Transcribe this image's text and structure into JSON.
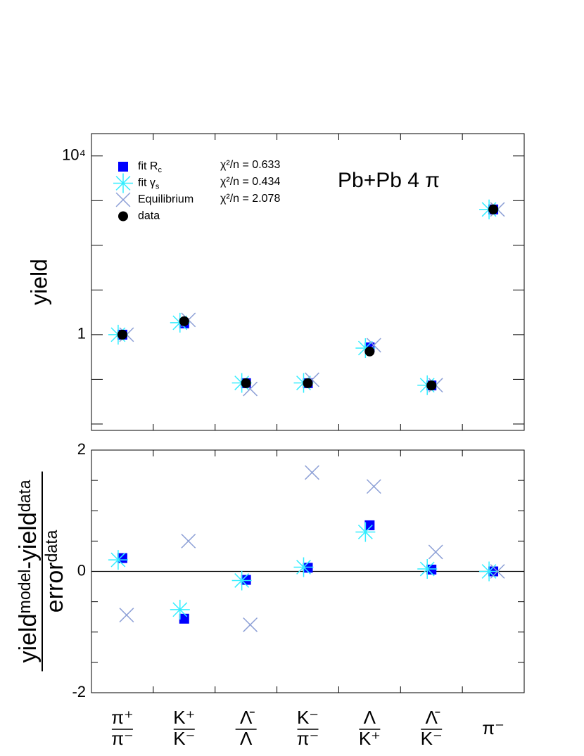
{
  "chart_data": [
    {
      "type": "point",
      "panel": "top",
      "log_y": true,
      "ylabel": "yield",
      "categories": [
        "π⁺/π⁻",
        "K⁺/K⁻",
        "Λ̄/Λ",
        "K⁻/π⁻",
        "Λ/K⁺",
        "Λ̄/K⁻",
        "π⁻"
      ],
      "ylim": [
        0.0072,
        31600
      ],
      "yticks": [
        1,
        {
          "value": 10000,
          "label": "10⁴"
        }
      ],
      "yticks_minor": [
        0.01,
        0.1,
        10,
        100,
        1000
      ],
      "series": [
        {
          "name": "fit Rc",
          "marker": "square",
          "color": "#0000ff",
          "values": [
            1,
            1.79,
            0.082,
            0.082,
            0.52,
            0.073,
            635
          ]
        },
        {
          "name": "fit γs",
          "marker": "asterisk",
          "color": "#33eeff",
          "values": [
            1,
            1.85,
            0.083,
            0.083,
            0.5,
            0.074,
            635
          ]
        },
        {
          "name": "Equilibrium",
          "marker": "x",
          "color": "#8c9fd6",
          "values": [
            1,
            2.14,
            0.061,
            0.098,
            0.58,
            0.074,
            635
          ]
        },
        {
          "name": "data",
          "marker": "circle",
          "color": "#000000",
          "values": [
            1,
            2.0,
            0.082,
            0.082,
            0.42,
            0.073,
            635
          ]
        }
      ],
      "annotations": [
        "χ²/n = 0.633",
        "χ²/n = 0.434",
        "χ²/n = 2.078"
      ],
      "text_label": "Pb+Pb   4 π"
    },
    {
      "type": "point",
      "panel": "bottom",
      "log_y": false,
      "ylabel": "yieldᵐᵒᵈᵉˡ-yieldᵈᵃᵗᵃ/errorᵈᵃᵗᵃ",
      "ylim": [
        -2,
        2
      ],
      "yticks": [
        -2,
        0,
        2
      ],
      "yticks_minor": [
        -1.5,
        -1,
        -0.5,
        0.5,
        1,
        1.5
      ],
      "hline": 0,
      "series": [
        {
          "marker": "square",
          "color": "#0000ff",
          "values": [
            0.22,
            -0.78,
            -0.14,
            0.06,
            0.76,
            0.03,
            0
          ]
        },
        {
          "marker": "asterisk",
          "color": "#33eeff",
          "values": [
            0.19,
            -0.63,
            -0.15,
            0.07,
            0.65,
            0.04,
            0
          ]
        },
        {
          "marker": "x",
          "color": "#8c9fd6",
          "values": [
            -0.72,
            0.5,
            -0.88,
            1.63,
            1.4,
            0.32,
            0
          ]
        }
      ]
    }
  ]
}
